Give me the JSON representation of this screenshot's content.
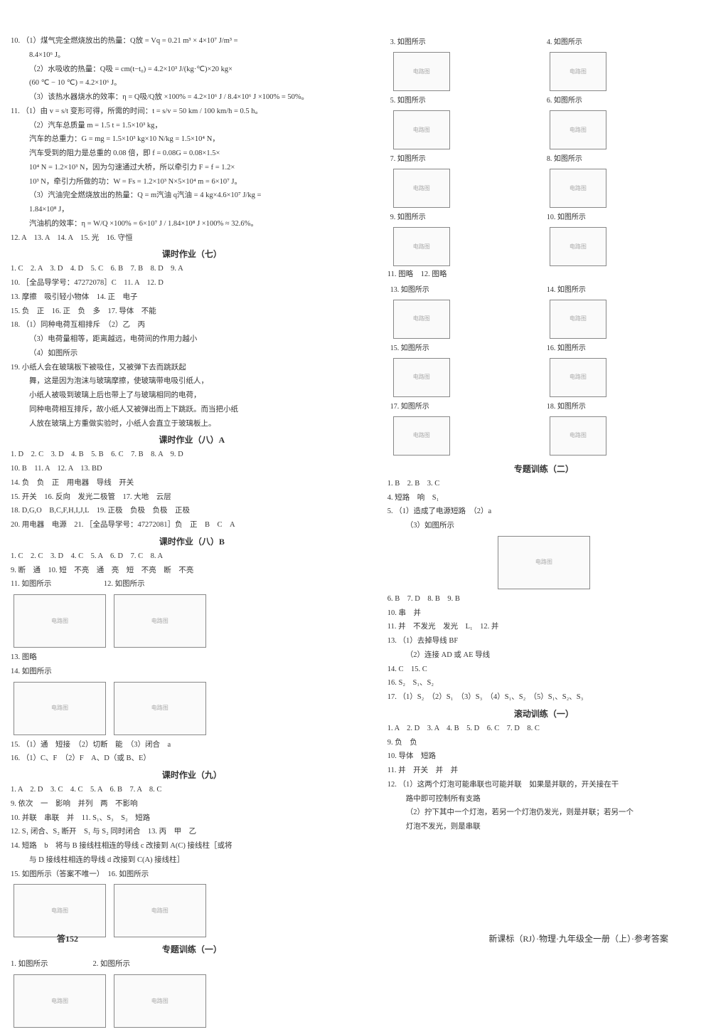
{
  "left": {
    "q10": {
      "line1": "10. （1）煤气完全燃烧放出的热量：Q放 = Vq = 0.21 m³ × 4×10⁷ J/m³ =",
      "line2": "8.4×10⁶ J。",
      "line3": "（2）水吸收的热量：Q吸 = cm(t−t₀) = 4.2×10³ J/(kg·℃)×20 kg×",
      "line4": "(60 ℃ − 10 ℃) = 4.2×10⁶ J。",
      "line5": "（3）该热水器烧水的效率：η = Q吸/Q放 ×100% = 4.2×10⁶ J / 8.4×10⁶ J ×100% = 50%。"
    },
    "q11": {
      "line1": "11. （1）由 v = s/t 变形可得，所需的时间：t = s/v = 50 km / 100 km/h = 0.5 h。",
      "line2": "（2）汽车总质量 m = 1.5 t = 1.5×10³ kg，",
      "line3": "汽车的总重力：G = mg = 1.5×10³ kg×10 N/kg = 1.5×10⁴ N，",
      "line4": "汽车受到的阻力是总重的 0.08 倍，即 f = 0.08G = 0.08×1.5×",
      "line5": "10⁴ N = 1.2×10³ N，因为匀速通过大桥，所以牵引力 F = f = 1.2×",
      "line6": "10³ N，牵引力所做的功：W = Fs = 1.2×10³ N×5×10⁴ m = 6×10⁷ J。",
      "line7": "（3）汽油完全燃烧放出的热量：Q = m汽油 q汽油 = 4 kg×4.6×10⁷ J/kg =",
      "line8": "1.84×10⁸ J，",
      "line9": "汽油机的效率：η = W/Q ×100% = 6×10⁷ J / 1.84×10⁸ J ×100% ≈ 32.6%。"
    },
    "simple_12_16": "12. A　13. A　14. A　15. 光　16. 守恒",
    "hw7_title": "课时作业（七）",
    "hw7": {
      "l1": "1. C　2. A　3. D　4. D　5. C　6. B　7. B　8. D　9. A",
      "l2": "10. ［全品导学号：47272078］C　11. A　12. D",
      "l3": "13. 摩擦　吸引轻小物体　14. 正　电子",
      "l4": "15. 负　正　16. 正　负　多　17. 导体　不能",
      "l5": "18. （1）同种电荷互相排斥　（2）乙　丙",
      "l6": "（3）电荷量相等，距离越远，电荷间的作用力越小",
      "l7": "（4）如图所示",
      "l8": "19. 小纸人会在玻璃板下被吸住，又被弹下去而跳跃起",
      "l9": "舞，这是因为泡沫与玻璃摩擦，使玻璃带电吸引纸人，",
      "l10": "小纸人被吸到玻璃上后也带上了与玻璃相同的电荷，",
      "l11": "同种电荷相互排斥，故小纸人又被弹出而上下跳跃。而当把小纸",
      "l12": "人放在玻璃上方重做实验时，小纸人会直立于玻璃板上。"
    },
    "hw8a_title": "课时作业（八）A",
    "hw8a": {
      "l1": "1. D　2. C　3. D　4. B　5. B　6. C　7. B　8. A　9. D",
      "l2": "10. B　11. A　12. A　13. BD",
      "l3": "14. 负　负　正　用电器　导线　开关",
      "l4": "15. 开关　16. 反向　发光二极管　17. 大地　云层",
      "l5": "18. D,G,O　B,C,F,H,I,J,L　19. 正极　负极　负极　正极",
      "l6": "20. 用电器　电源　21. ［全品导学号：47272081］负　正　B　C　A"
    },
    "hw8b_title": "课时作业（八）B",
    "hw8b": {
      "l1": "1. C　2. C　3. D　4. C　5. A　6. D　7. C　8. A",
      "l2": "9. 断　通　10. 短　不亮　通　亮　短　不亮　断　不亮",
      "l3": "11. 如图所示　　　　　　　12. 如图所示",
      "l4": "13. 图略",
      "l5": "14. 如图所示",
      "l6": "15. （1）通　短接　（2）切断　能　（3）闭合　a",
      "l7": "16. （1）C、F　（2）F　A、D（或 B、E）"
    },
    "hw9_title": "课时作业（九）",
    "hw9": {
      "l1": "1. A　2. D　3. C　4. C　5. A　6. B　7. A　8. C",
      "l2": "9. 依次　一　影响　并列　两　不影响",
      "l3": "10. 并联　串联　并　11. S₁、S₃　S₂　短路",
      "l4": "12. S₁ 闭合、S₂ 断开　S₁ 与 S₂ 同时闭合　13. 丙　甲　乙",
      "l5": "14. 短路　b　将与 B 接线柱相连的导线 c 改接到 A(C) 接线柱［或将",
      "l6": "与 D 接线柱相连的导线 d 改接到 C(A) 接线柱］",
      "l7": "15. 如图所示（答案不唯一）　16. 如图所示"
    },
    "tr1_title": "专题训练（一）",
    "tr1": {
      "l1": "1. 如图所示　　　　　　2. 如图所示"
    }
  },
  "right": {
    "items": {
      "r3": "3. 如图所示",
      "r4": "4. 如图所示",
      "r5": "5. 如图所示",
      "r6": "6. 如图所示",
      "r7": "7. 如图所示",
      "r8": "8. 如图所示",
      "r9": "9. 如图所示",
      "r10": "10. 如图所示",
      "r11": "11. 图略　12. 图略",
      "r13": "13. 如图所示",
      "r14": "14. 如图所示",
      "r15": "15. 如图所示",
      "r16": "16. 如图所示",
      "r17": "17. 如图所示",
      "r18": "18. 如图所示"
    },
    "tr2_title": "专题训练（二）",
    "tr2": {
      "l1": "1. B　2. B　3. C",
      "l2": "4. 短路　响　S₁",
      "l3": "5. （1）造成了电源短路　（2）a",
      "l4": "（3）如图所示",
      "l5": "6. B　7. D　8. B　9. B",
      "l6": "10. 串　并",
      "l7": "11. 并　不发光　发光　L₁　12. 并",
      "l8": "13. （1）去掉导线 BF",
      "l9": "（2）连接 AD 或 AE 导线",
      "l10": "14. C　15. C",
      "l11": "16. S₂　S₁、S₂",
      "l12": "17. （1）S₂　（2）S₁　（3）S₃　（4）S₁、S₂　（5）S₁、S₂、S₃"
    },
    "roll1_title": "滚动训练（一）",
    "roll1": {
      "l1": "1. A　2. D　3. A　4. B　5. D　6. C　7. D　8. C",
      "l2": "9. 负　负",
      "l3": "10. 导体　短路",
      "l4": "11. 并　开关　并　并",
      "l5": "12. （1）这两个灯泡可能串联也可能并联　如果是并联的，开关接在干",
      "l6": "路中即可控制所有支路",
      "l7": "（2）拧下其中一个灯泡，若另一个灯泡仍发光，则是并联；若另一个",
      "l8": "灯泡不发光，则是串联"
    }
  },
  "footer": {
    "page_label": "答152",
    "book_info": "新课标（RJ）·物理·九年级全一册（上）·参考答案"
  },
  "colors": {
    "text": "#333333",
    "bg": "#ffffff",
    "diagram_border": "#888888"
  }
}
